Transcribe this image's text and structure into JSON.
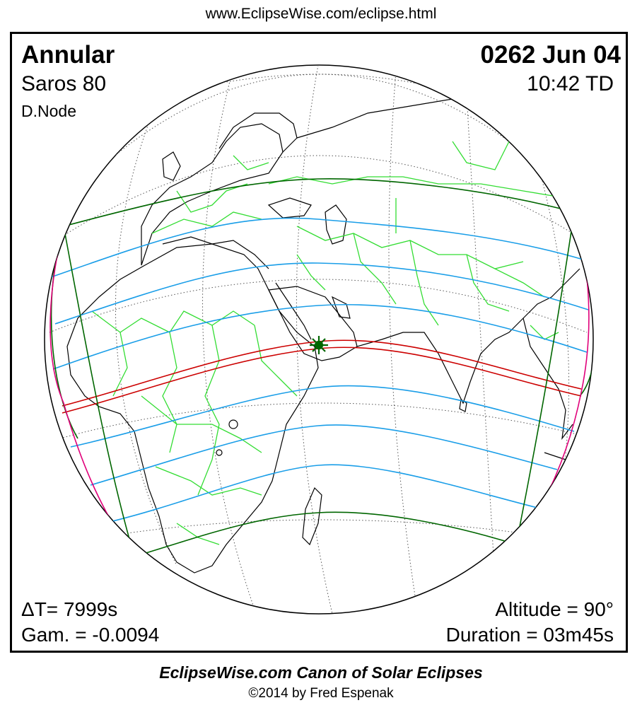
{
  "header_url": "www.EclipseWise.com/eclipse.html",
  "eclipse": {
    "type": "Annular",
    "date": "0262 Jun 04",
    "saros": "Saros  80",
    "time": "10:42 TD",
    "node": "D.Node",
    "delta_t": "ΔT=   7999s",
    "gamma": "Gam. = -0.0094",
    "altitude": "Altitude = 90°",
    "duration": "Duration = 03m45s"
  },
  "footer": {
    "title": "EclipseWise.com Canon of Solar Eclipses",
    "copyright": "©2014 by Fred Espenak"
  },
  "colors": {
    "central_path": "#cc0000",
    "penumbral_limits": "#006600",
    "partial_lines": "#1a9ee8",
    "rise_set_curves": "#e0007a",
    "borders": "#33dd33",
    "coastlines": "#000000",
    "graticule": "#555555",
    "greatest_eclipse_marker": "#006600"
  }
}
